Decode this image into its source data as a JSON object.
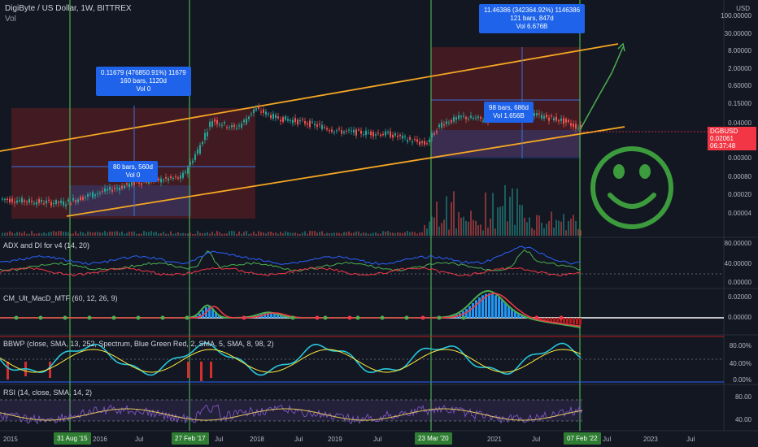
{
  "header": {
    "title": "DigiByte / US Dollar, 1W, BITTREX",
    "vol_label": "Vol"
  },
  "price_axis": {
    "unit": "USD",
    "ticks": [
      "100.00000",
      "30.00000",
      "8.00000",
      "2.00000",
      "0.60000",
      "0.15000",
      "0.04000",
      "0.01000",
      "0.00300",
      "0.00080",
      "0.00020",
      "0.00004"
    ]
  },
  "symbol_badge": {
    "symbol": "DGBUSD",
    "price": "0.02061",
    "countdown": "06:37:48"
  },
  "x_axis": {
    "ticks": [
      "2015",
      "2016",
      "Jul",
      "Jul",
      "2018",
      "Jul",
      "2019",
      "Jul",
      "2021",
      "Jul",
      "2022",
      "Jul",
      "2023",
      "Jul"
    ],
    "markers": [
      "31 Aug '15",
      "27 Feb '17",
      "23 Mar '20",
      "07 Feb '22"
    ]
  },
  "measure_boxes": [
    {
      "lines": [
        "0.11679 (476850.91%) 11679",
        "160 bars, 1120d",
        "Vol 0"
      ]
    },
    {
      "lines": [
        "80 bars, 560d",
        "Vol 0"
      ]
    },
    {
      "lines": [
        "11.46386 (342364.92%) 1146386",
        "121 bars, 847d",
        "Vol 6.676B"
      ]
    },
    {
      "lines": [
        "98 bars, 686d",
        "Vol 1.656B"
      ]
    }
  ],
  "panes": [
    {
      "title": "ADX and DI for v4 (14, 20)",
      "ticks": [
        "80.00000",
        "40.00000",
        "0.00000"
      ]
    },
    {
      "title": "CM_Ult_MacD_MTF (60, 12, 26, 9)",
      "ticks": [
        "0.02000",
        "0.00000"
      ]
    },
    {
      "title": "BBWP (close, SMA, 13, 252, Spectrum, Blue Green Red, 2, SMA, 5, SMA, 8, 98, 2)",
      "ticks": [
        "80.00%",
        "40.00%",
        "0.00%"
      ]
    },
    {
      "title": "RSI (14, close, SMA, 14, 2)",
      "ticks": [
        "80.00",
        "40.00"
      ]
    }
  ],
  "colors": {
    "background": "#131722",
    "channel": "#f5a623",
    "vertical_lines": "#4caf50",
    "smiley": "#3c9b3c",
    "measure_box": "#1e63e9",
    "range_box": "#7a2222",
    "badge": "#f23645"
  },
  "chart_data": {
    "type": "line",
    "title": "DigiByte / US Dollar, 1W, BITTREX",
    "y_scale": "log",
    "x": [
      "2015",
      "2016",
      "2017",
      "2018",
      "2019",
      "2020",
      "2021",
      "2022"
    ],
    "series": [
      {
        "values": [
          5e-05,
          3e-05,
          0.0003,
          0.06,
          0.015,
          0.005,
          0.06,
          0.02
        ]
      }
    ]
  }
}
